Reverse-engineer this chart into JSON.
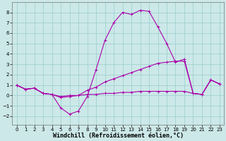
{
  "xlabel": "Windchill (Refroidissement éolien,°C)",
  "xlim": [
    -0.5,
    23.5
  ],
  "ylim": [
    -2.8,
    9.0
  ],
  "yticks": [
    -2,
    -1,
    0,
    1,
    2,
    3,
    4,
    5,
    6,
    7,
    8
  ],
  "xticks": [
    0,
    1,
    2,
    3,
    4,
    5,
    6,
    7,
    8,
    9,
    10,
    11,
    12,
    13,
    14,
    15,
    16,
    17,
    18,
    19,
    20,
    21,
    22,
    23
  ],
  "background_color": "#cce8e8",
  "grid_color": "#99cccc",
  "line_color": "#aa00aa",
  "line1_x": [
    0,
    1,
    2,
    3,
    4,
    5,
    6,
    7,
    8,
    9,
    10,
    11,
    12,
    13,
    14,
    15,
    16,
    17,
    18,
    19,
    20,
    21,
    22,
    23
  ],
  "line1_y": [
    1.0,
    0.6,
    0.7,
    0.2,
    0.1,
    -1.2,
    -1.8,
    -1.5,
    -0.1,
    2.5,
    5.3,
    7.0,
    8.0,
    7.8,
    8.2,
    8.1,
    6.6,
    5.0,
    3.2,
    3.5,
    0.2,
    0.1,
    1.5,
    1.1
  ],
  "line2_x": [
    0,
    1,
    2,
    3,
    4,
    5,
    6,
    7,
    8,
    9,
    10,
    11,
    12,
    13,
    14,
    15,
    16,
    17,
    18,
    19,
    20,
    21,
    22,
    23
  ],
  "line2_y": [
    1.0,
    0.6,
    0.7,
    0.2,
    0.1,
    -0.2,
    -0.1,
    0.0,
    0.5,
    0.8,
    1.3,
    1.6,
    1.9,
    2.2,
    2.5,
    2.8,
    3.1,
    3.2,
    3.3,
    3.3,
    0.2,
    0.1,
    1.5,
    1.1
  ],
  "line3_x": [
    0,
    1,
    2,
    3,
    4,
    5,
    6,
    7,
    8,
    9,
    10,
    11,
    12,
    13,
    14,
    15,
    16,
    17,
    18,
    19,
    20,
    21,
    22,
    23
  ],
  "line3_y": [
    1.0,
    0.6,
    0.7,
    0.2,
    0.1,
    -0.1,
    -0.0,
    0.0,
    0.1,
    0.1,
    0.2,
    0.2,
    0.3,
    0.3,
    0.4,
    0.4,
    0.4,
    0.4,
    0.4,
    0.4,
    0.2,
    0.1,
    1.5,
    1.1
  ],
  "marker": "+",
  "markersize": 3,
  "linewidth": 0.8,
  "tick_fontsize": 5.0,
  "xlabel_fontsize": 6.0
}
